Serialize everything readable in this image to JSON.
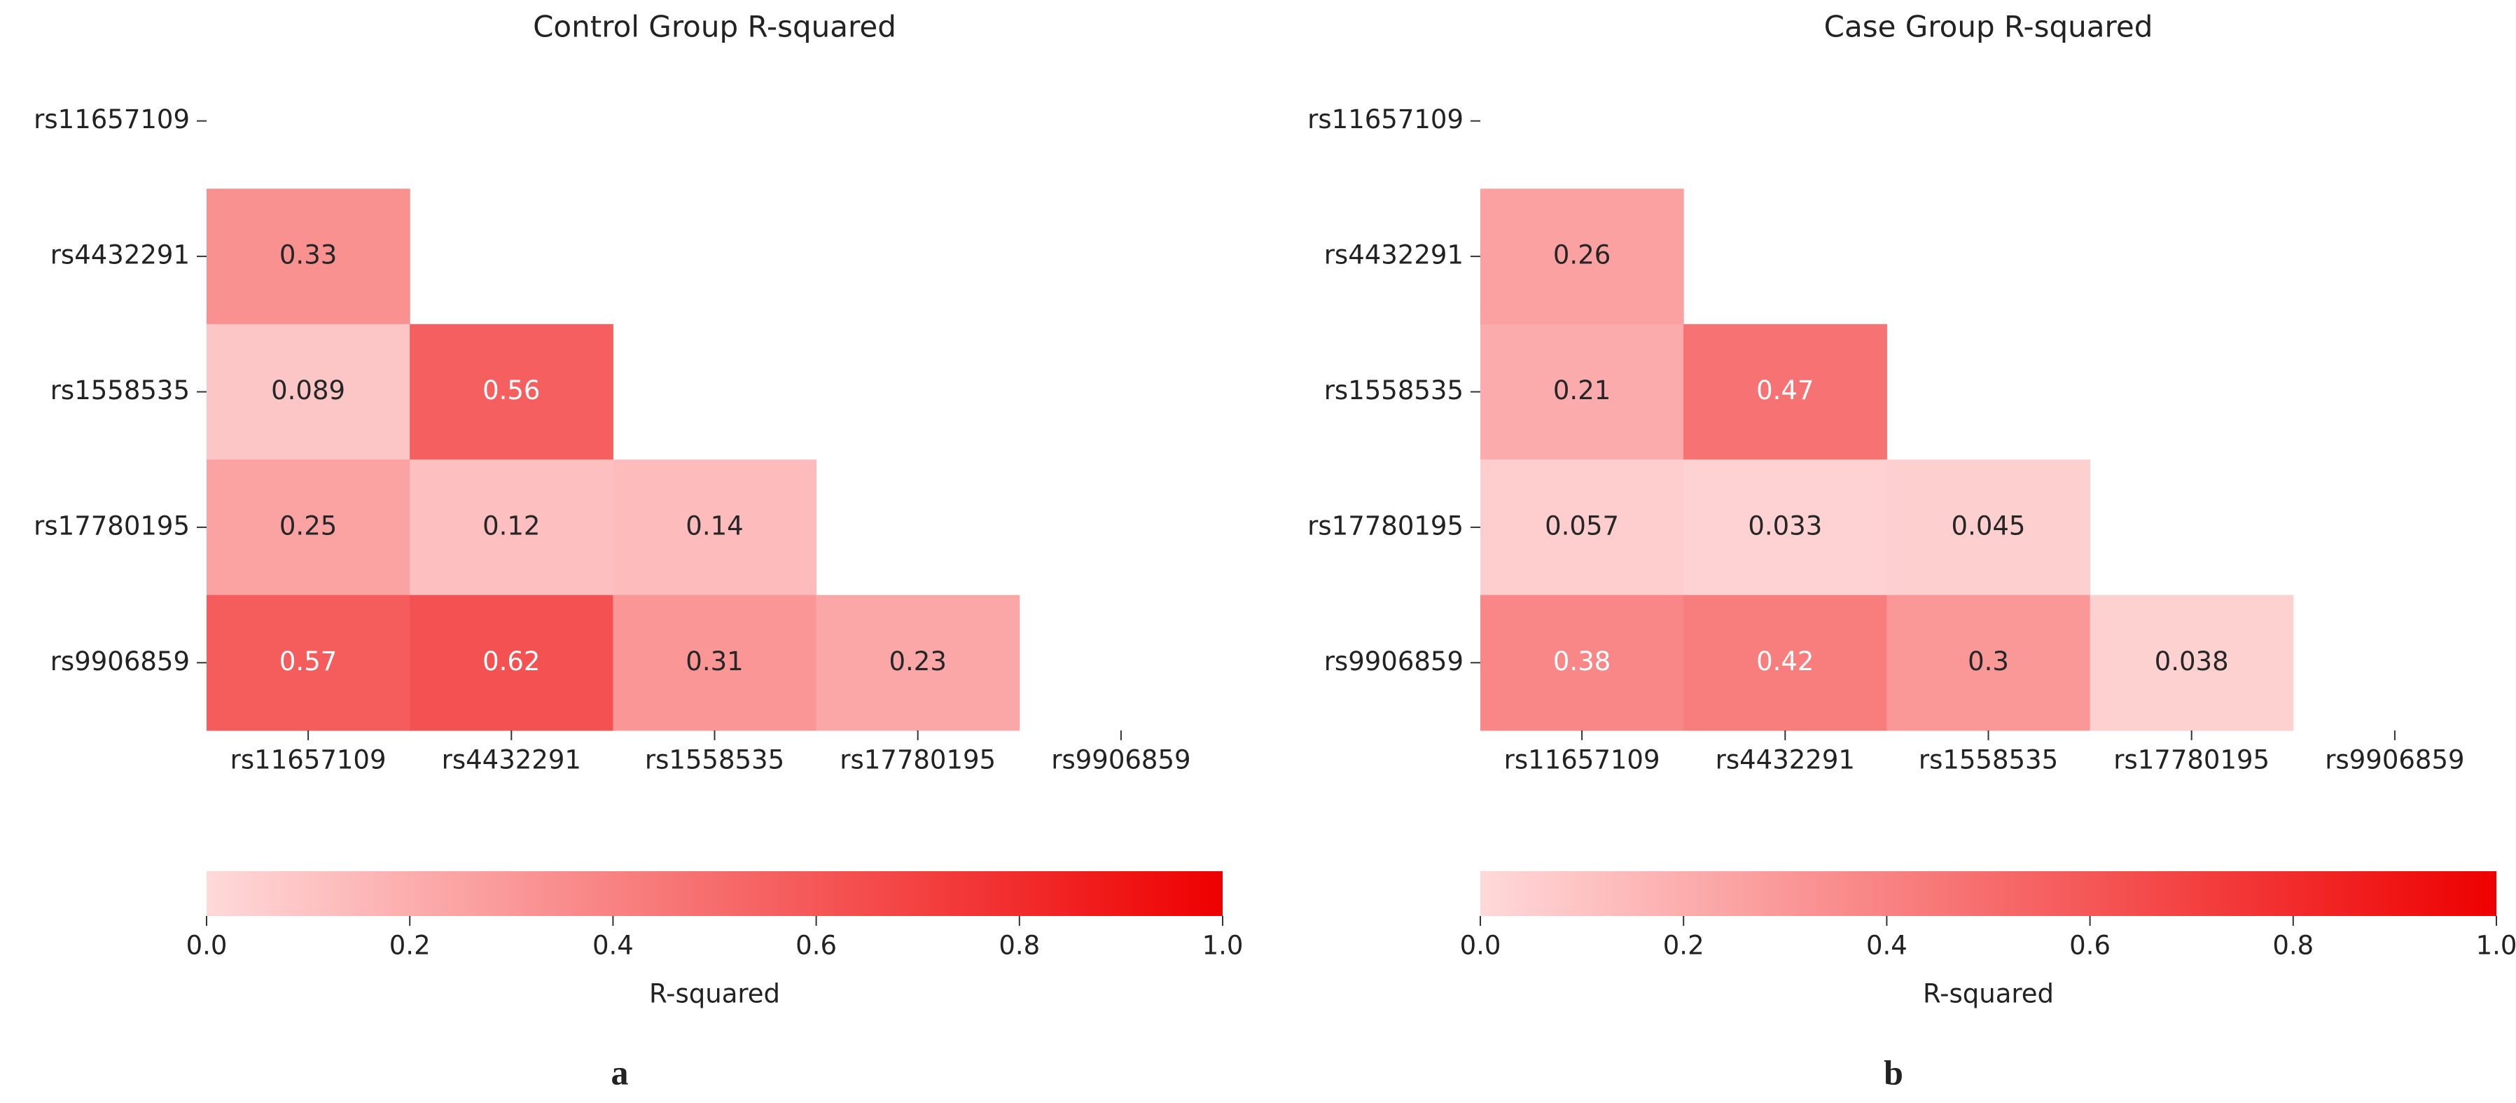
{
  "chart_data": [
    {
      "type": "heatmap",
      "title": "Control Group R-squared",
      "panel_label": "a",
      "x": [
        "rs11657109",
        "rs4432291",
        "rs1558535",
        "rs17780195",
        "rs9906859"
      ],
      "y": [
        "rs11657109",
        "rs4432291",
        "rs1558535",
        "rs17780195",
        "rs9906859"
      ],
      "values": [
        [
          null,
          null,
          null,
          null,
          null
        ],
        [
          0.33,
          null,
          null,
          null,
          null
        ],
        [
          0.089,
          0.56,
          null,
          null,
          null
        ],
        [
          0.25,
          0.12,
          0.14,
          null,
          null
        ],
        [
          0.57,
          0.62,
          0.31,
          0.23,
          null
        ]
      ],
      "cmap": [
        "#ffd9d9",
        "#ee0000"
      ],
      "colorbar_label": "R-squared",
      "clim": [
        0,
        1
      ],
      "cticks": [
        {
          "value": 0,
          "label": "0.0"
        },
        0.2,
        0.4,
        0.6,
        0.8,
        {
          "value": 1,
          "label": "1.0"
        }
      ]
    },
    {
      "type": "heatmap",
      "title": "Case Group R-squared",
      "panel_label": "b",
      "x": [
        "rs11657109",
        "rs4432291",
        "rs1558535",
        "rs17780195",
        "rs9906859"
      ],
      "y": [
        "rs11657109",
        "rs4432291",
        "rs1558535",
        "rs17780195",
        "rs9906859"
      ],
      "values": [
        [
          null,
          null,
          null,
          null,
          null
        ],
        [
          0.26,
          null,
          null,
          null,
          null
        ],
        [
          0.21,
          0.47,
          null,
          null,
          null
        ],
        [
          0.057,
          0.033,
          0.045,
          null,
          null
        ],
        [
          0.38,
          0.42,
          0.3,
          0.038,
          null
        ]
      ],
      "cmap": [
        "#ffd9d9",
        "#ee0000"
      ],
      "colorbar_label": "R-squared",
      "clim": [
        0,
        1
      ],
      "cticks": [
        {
          "value": 0,
          "label": "0.0"
        },
        0.2,
        0.4,
        0.6,
        0.8,
        {
          "value": 1,
          "label": "1.0"
        }
      ]
    }
  ]
}
